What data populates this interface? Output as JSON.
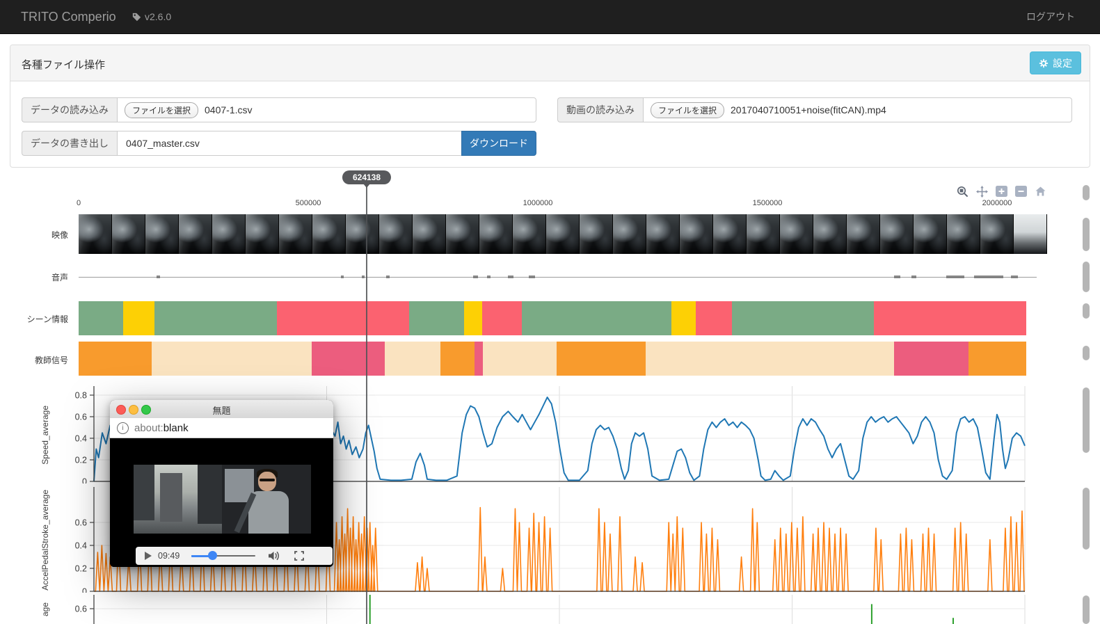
{
  "navbar": {
    "brand": "TRITO Comperio",
    "version": "v2.6.0",
    "logout_label": "ログアウト"
  },
  "file_panel": {
    "title": "各種ファイル操作",
    "settings_label": "設定",
    "data_load_label": "データの読み込み",
    "file_select_label": "ファイルを選択",
    "data_load_filename": "0407-1.csv",
    "video_load_label": "動画の読み込み",
    "video_load_filename": "2017040710051+noise(fitCAN).mp4",
    "data_export_label": "データの書き出し",
    "data_export_value": "0407_master.csv",
    "download_label": "ダウンロード"
  },
  "timeline": {
    "cursor_label": "624138",
    "cursor_value": 624138,
    "axis_ticks": [
      "0",
      "500000",
      "1000000",
      "1500000",
      "2000000"
    ],
    "axis_tick_values": [
      0,
      500,
      1000,
      1500,
      2000
    ],
    "row_labels": {
      "video": "映像",
      "audio": "音声",
      "scene": "シーン情報",
      "teacher": "教師信号"
    },
    "film_frame_count": 29,
    "colors": {
      "scene_green": "#7aab85",
      "scene_yellow": "#fdd005",
      "scene_red": "#fb6270",
      "teacher_orange": "#f89b2d",
      "teacher_cream": "#fae3c0",
      "teacher_pink": "#ec5d7e"
    },
    "scene_segments": [
      {
        "c": "scene_green",
        "from": 0,
        "to": 97
      },
      {
        "c": "scene_yellow",
        "from": 97,
        "to": 165
      },
      {
        "c": "scene_green",
        "from": 165,
        "to": 432
      },
      {
        "c": "scene_red",
        "from": 432,
        "to": 720
      },
      {
        "c": "scene_green",
        "from": 720,
        "to": 839
      },
      {
        "c": "scene_yellow",
        "from": 839,
        "to": 879
      },
      {
        "c": "scene_red",
        "from": 879,
        "to": 965
      },
      {
        "c": "scene_green",
        "from": 965,
        "to": 1291
      },
      {
        "c": "scene_yellow",
        "from": 1291,
        "to": 1344
      },
      {
        "c": "scene_red",
        "from": 1344,
        "to": 1423
      },
      {
        "c": "scene_green",
        "from": 1423,
        "to": 1732
      },
      {
        "c": "scene_red",
        "from": 1732,
        "to": 2064
      }
    ],
    "teacher_segments": [
      {
        "c": "teacher_orange",
        "from": 0,
        "to": 159
      },
      {
        "c": "teacher_cream",
        "from": 159,
        "to": 508
      },
      {
        "c": "teacher_pink",
        "from": 508,
        "to": 667
      },
      {
        "c": "teacher_cream",
        "from": 667,
        "to": 788
      },
      {
        "c": "teacher_orange",
        "from": 788,
        "to": 862
      },
      {
        "c": "teacher_pink",
        "from": 862,
        "to": 880
      },
      {
        "c": "teacher_cream",
        "from": 880,
        "to": 1041
      },
      {
        "c": "teacher_orange",
        "from": 1041,
        "to": 1235
      },
      {
        "c": "teacher_cream",
        "from": 1235,
        "to": 1776
      },
      {
        "c": "teacher_pink",
        "from": 1776,
        "to": 1938
      },
      {
        "c": "teacher_orange",
        "from": 1938,
        "to": 2064
      }
    ],
    "audio_marks": [
      {
        "u": 170,
        "w": 5
      },
      {
        "u": 571,
        "w": 4
      },
      {
        "u": 617,
        "w": 4
      },
      {
        "u": 670,
        "w": 5
      },
      {
        "u": 859,
        "w": 7
      },
      {
        "u": 889,
        "w": 5
      },
      {
        "u": 935,
        "w": 8
      },
      {
        "u": 980,
        "w": 9
      },
      {
        "u": 1776,
        "w": 9
      },
      {
        "u": 1814,
        "w": 7
      },
      {
        "u": 1890,
        "w": 26
      },
      {
        "u": 1950,
        "w": 42
      },
      {
        "u": 2030,
        "w": 10
      }
    ],
    "toolbar_icons": [
      "zoom-box",
      "pan",
      "zoom-in",
      "zoom-out",
      "reset-home"
    ]
  },
  "chart_data": [
    {
      "type": "line",
      "name": "Speed_average",
      "color": "#1f77b4",
      "xlim": [
        0,
        2000000
      ],
      "x_scale": 1000,
      "ylim": [
        0,
        0.8
      ],
      "yticks": [
        0,
        0.2,
        0.4,
        0.6,
        0.8
      ],
      "grid": true,
      "legend": "none",
      "points": [
        [
          0,
          0
        ],
        [
          5,
          0.3
        ],
        [
          10,
          0.22
        ],
        [
          18,
          0.45
        ],
        [
          26,
          0.35
        ],
        [
          35,
          0.52
        ],
        [
          44,
          0.4
        ],
        [
          53,
          0.5
        ],
        [
          68,
          0.45
        ],
        [
          98,
          0.5
        ],
        [
          128,
          0.48
        ],
        [
          158,
          0.52
        ],
        [
          188,
          0.5
        ],
        [
          218,
          0.47
        ],
        [
          248,
          0.5
        ],
        [
          278,
          0.52
        ],
        [
          308,
          0.49
        ],
        [
          338,
          0.51
        ],
        [
          368,
          0.5
        ],
        [
          398,
          0.48
        ],
        [
          428,
          0.5
        ],
        [
          458,
          0.52
        ],
        [
          488,
          0.5
        ],
        [
          510,
          0.48
        ],
        [
          518,
          0.42
        ],
        [
          524,
          0.55
        ],
        [
          530,
          0.35
        ],
        [
          536,
          0.42
        ],
        [
          542,
          0.3
        ],
        [
          548,
          0.38
        ],
        [
          555,
          0.25
        ],
        [
          563,
          0.32
        ],
        [
          570,
          0.22
        ],
        [
          578,
          0.3
        ],
        [
          584,
          0.45
        ],
        [
          590,
          0.52
        ],
        [
          596,
          0.4
        ],
        [
          602,
          0.28
        ],
        [
          608,
          0.12
        ],
        [
          615,
          0.02
        ],
        [
          638,
          0.01
        ],
        [
          660,
          0.01
        ],
        [
          683,
          0.02
        ],
        [
          692,
          0.18
        ],
        [
          701,
          0.26
        ],
        [
          710,
          0.15
        ],
        [
          716,
          0.02
        ],
        [
          735,
          0.01
        ],
        [
          758,
          0.01
        ],
        [
          780,
          0.05
        ],
        [
          791,
          0.45
        ],
        [
          800,
          0.62
        ],
        [
          809,
          0.7
        ],
        [
          818,
          0.68
        ],
        [
          827,
          0.6
        ],
        [
          836,
          0.45
        ],
        [
          845,
          0.32
        ],
        [
          855,
          0.35
        ],
        [
          866,
          0.5
        ],
        [
          878,
          0.6
        ],
        [
          890,
          0.65
        ],
        [
          900,
          0.6
        ],
        [
          911,
          0.55
        ],
        [
          920,
          0.62
        ],
        [
          929,
          0.55
        ],
        [
          938,
          0.48
        ],
        [
          947,
          0.55
        ],
        [
          956,
          0.62
        ],
        [
          965,
          0.7
        ],
        [
          974,
          0.78
        ],
        [
          983,
          0.72
        ],
        [
          992,
          0.55
        ],
        [
          1001,
          0.3
        ],
        [
          1010,
          0.08
        ],
        [
          1019,
          0.01
        ],
        [
          1043,
          0.01
        ],
        [
          1061,
          0.1
        ],
        [
          1070,
          0.35
        ],
        [
          1079,
          0.48
        ],
        [
          1088,
          0.52
        ],
        [
          1097,
          0.48
        ],
        [
          1106,
          0.5
        ],
        [
          1115,
          0.42
        ],
        [
          1124,
          0.3
        ],
        [
          1133,
          0.12
        ],
        [
          1140,
          0.02
        ],
        [
          1148,
          0.1
        ],
        [
          1155,
          0.35
        ],
        [
          1163,
          0.45
        ],
        [
          1172,
          0.42
        ],
        [
          1181,
          0.45
        ],
        [
          1190,
          0.3
        ],
        [
          1199,
          0.05
        ],
        [
          1215,
          0.01
        ],
        [
          1235,
          0.02
        ],
        [
          1244,
          0.15
        ],
        [
          1253,
          0.28
        ],
        [
          1262,
          0.3
        ],
        [
          1271,
          0.22
        ],
        [
          1280,
          0.08
        ],
        [
          1289,
          0.01
        ],
        [
          1301,
          0.05
        ],
        [
          1310,
          0.3
        ],
        [
          1319,
          0.48
        ],
        [
          1328,
          0.55
        ],
        [
          1337,
          0.5
        ],
        [
          1346,
          0.55
        ],
        [
          1355,
          0.58
        ],
        [
          1364,
          0.52
        ],
        [
          1373,
          0.55
        ],
        [
          1382,
          0.5
        ],
        [
          1391,
          0.55
        ],
        [
          1400,
          0.52
        ],
        [
          1409,
          0.48
        ],
        [
          1418,
          0.4
        ],
        [
          1427,
          0.2
        ],
        [
          1433,
          0.05
        ],
        [
          1442,
          0.01
        ],
        [
          1454,
          0.02
        ],
        [
          1463,
          0.1
        ],
        [
          1472,
          0.05
        ],
        [
          1481,
          0.01
        ],
        [
          1496,
          0.05
        ],
        [
          1505,
          0.3
        ],
        [
          1514,
          0.5
        ],
        [
          1523,
          0.58
        ],
        [
          1532,
          0.52
        ],
        [
          1541,
          0.58
        ],
        [
          1550,
          0.55
        ],
        [
          1559,
          0.48
        ],
        [
          1568,
          0.42
        ],
        [
          1577,
          0.3
        ],
        [
          1586,
          0.22
        ],
        [
          1595,
          0.3
        ],
        [
          1604,
          0.35
        ],
        [
          1613,
          0.2
        ],
        [
          1622,
          0.05
        ],
        [
          1631,
          0.02
        ],
        [
          1643,
          0.1
        ],
        [
          1652,
          0.4
        ],
        [
          1661,
          0.55
        ],
        [
          1670,
          0.6
        ],
        [
          1679,
          0.55
        ],
        [
          1688,
          0.58
        ],
        [
          1697,
          0.6
        ],
        [
          1706,
          0.55
        ],
        [
          1715,
          0.58
        ],
        [
          1724,
          0.6
        ],
        [
          1733,
          0.55
        ],
        [
          1742,
          0.5
        ],
        [
          1751,
          0.45
        ],
        [
          1760,
          0.35
        ],
        [
          1769,
          0.42
        ],
        [
          1778,
          0.55
        ],
        [
          1787,
          0.6
        ],
        [
          1796,
          0.55
        ],
        [
          1805,
          0.45
        ],
        [
          1814,
          0.2
        ],
        [
          1823,
          0.05
        ],
        [
          1832,
          0.02
        ],
        [
          1844,
          0.1
        ],
        [
          1853,
          0.45
        ],
        [
          1862,
          0.58
        ],
        [
          1871,
          0.6
        ],
        [
          1880,
          0.55
        ],
        [
          1889,
          0.58
        ],
        [
          1898,
          0.5
        ],
        [
          1907,
          0.3
        ],
        [
          1916,
          0.08
        ],
        [
          1925,
          0.02
        ],
        [
          1934,
          0.4
        ],
        [
          1940,
          0.62
        ],
        [
          1946,
          0.55
        ],
        [
          1952,
          0.3
        ],
        [
          1958,
          0.12
        ],
        [
          1964,
          0.2
        ],
        [
          1973,
          0.4
        ],
        [
          1982,
          0.45
        ],
        [
          1991,
          0.42
        ],
        [
          2000,
          0.33
        ]
      ]
    },
    {
      "type": "line",
      "name": "AccelPedalStroke_average",
      "color": "#ff7f0e",
      "xlim": [
        0,
        2000000
      ],
      "x_scale": 1000,
      "ylim": [
        0,
        0.75
      ],
      "yticks": [
        0,
        0.2,
        0.4,
        0.6
      ],
      "grid": true,
      "legend": "none",
      "spikes": [
        [
          8,
          0.34
        ],
        [
          17,
          0.4
        ],
        [
          26,
          0.33
        ],
        [
          35,
          0.3
        ],
        [
          53,
          0.5
        ],
        [
          75,
          0.3
        ],
        [
          98,
          0.45
        ],
        [
          120,
          0.55
        ],
        [
          143,
          0.4
        ],
        [
          165,
          0.5
        ],
        [
          188,
          0.35
        ],
        [
          210,
          0.45
        ],
        [
          233,
          0.55
        ],
        [
          255,
          0.4
        ],
        [
          278,
          0.5
        ],
        [
          300,
          0.45
        ],
        [
          323,
          0.55
        ],
        [
          345,
          0.4
        ],
        [
          368,
          0.5
        ],
        [
          390,
          0.45
        ],
        [
          413,
          0.55
        ],
        [
          435,
          0.5
        ],
        [
          458,
          0.45
        ],
        [
          480,
          0.5
        ],
        [
          503,
          0.55
        ],
        [
          521,
          0.6
        ],
        [
          527,
          0.45
        ],
        [
          533,
          0.65
        ],
        [
          539,
          0.5
        ],
        [
          545,
          0.72
        ],
        [
          551,
          0.55
        ],
        [
          557,
          0.65
        ],
        [
          563,
          0.45
        ],
        [
          569,
          0.6
        ],
        [
          575,
          0.5
        ],
        [
          581,
          0.65
        ],
        [
          587,
          0.55
        ],
        [
          593,
          0.6
        ],
        [
          599,
          0.4
        ],
        [
          605,
          0.55
        ],
        [
          695,
          0.25
        ],
        [
          705,
          0.3
        ],
        [
          716,
          0.2
        ],
        [
          830,
          0.73
        ],
        [
          840,
          0.3
        ],
        [
          878,
          0.2
        ],
        [
          905,
          0.72
        ],
        [
          914,
          0.6
        ],
        [
          935,
          0.55
        ],
        [
          945,
          0.68
        ],
        [
          956,
          0.6
        ],
        [
          968,
          0.65
        ],
        [
          980,
          0.55
        ],
        [
          1085,
          0.72
        ],
        [
          1097,
          0.6
        ],
        [
          1109,
          0.5
        ],
        [
          1130,
          0.65
        ],
        [
          1163,
          0.3
        ],
        [
          1178,
          0.25
        ],
        [
          1235,
          0.6
        ],
        [
          1244,
          0.5
        ],
        [
          1253,
          0.65
        ],
        [
          1265,
          0.55
        ],
        [
          1305,
          0.6
        ],
        [
          1316,
          0.5
        ],
        [
          1328,
          0.55
        ],
        [
          1340,
          0.45
        ],
        [
          1391,
          0.3
        ],
        [
          1415,
          0.72
        ],
        [
          1425,
          0.6
        ],
        [
          1463,
          0.45
        ],
        [
          1475,
          0.55
        ],
        [
          1487,
          0.5
        ],
        [
          1499,
          0.6
        ],
        [
          1511,
          0.55
        ],
        [
          1523,
          0.65
        ],
        [
          1545,
          0.5
        ],
        [
          1556,
          0.55
        ],
        [
          1568,
          0.6
        ],
        [
          1580,
          0.55
        ],
        [
          1592,
          0.5
        ],
        [
          1604,
          0.55
        ],
        [
          1616,
          0.5
        ],
        [
          1680,
          0.55
        ],
        [
          1691,
          0.45
        ],
        [
          1733,
          0.5
        ],
        [
          1745,
          0.55
        ],
        [
          1757,
          0.45
        ],
        [
          1781,
          0.5
        ],
        [
          1793,
          0.55
        ],
        [
          1805,
          0.5
        ],
        [
          1850,
          0.55
        ],
        [
          1862,
          0.6
        ],
        [
          1874,
          0.5
        ],
        [
          1925,
          0.45
        ],
        [
          1958,
          0.55
        ],
        [
          1970,
          0.65
        ],
        [
          1982,
          0.6
        ],
        [
          1994,
          0.7
        ]
      ]
    },
    {
      "type": "line",
      "name": "age",
      "color": "#2ca02c",
      "clipped": true,
      "xlim": [
        0,
        2000000
      ],
      "x_scale": 1000,
      "yticks": [
        0.6
      ],
      "grid": true,
      "legend": "none",
      "spikes": [
        [
          593,
          0.95
        ],
        [
          1671,
          0.64
        ],
        [
          1846,
          0.52
        ]
      ]
    }
  ],
  "video_window": {
    "title": "無題",
    "url_scheme": "about:",
    "url_body": "blank",
    "time": "09:49",
    "player_icons": [
      "play",
      "volume",
      "fullscreen"
    ]
  },
  "icons": {
    "version_icon": "tag",
    "settings_icon": "gear",
    "url_icon": "info-circle",
    "zoom_toolbar": [
      "zoom-box",
      "pan",
      "zoom-in",
      "zoom-out",
      "reset-home"
    ]
  }
}
